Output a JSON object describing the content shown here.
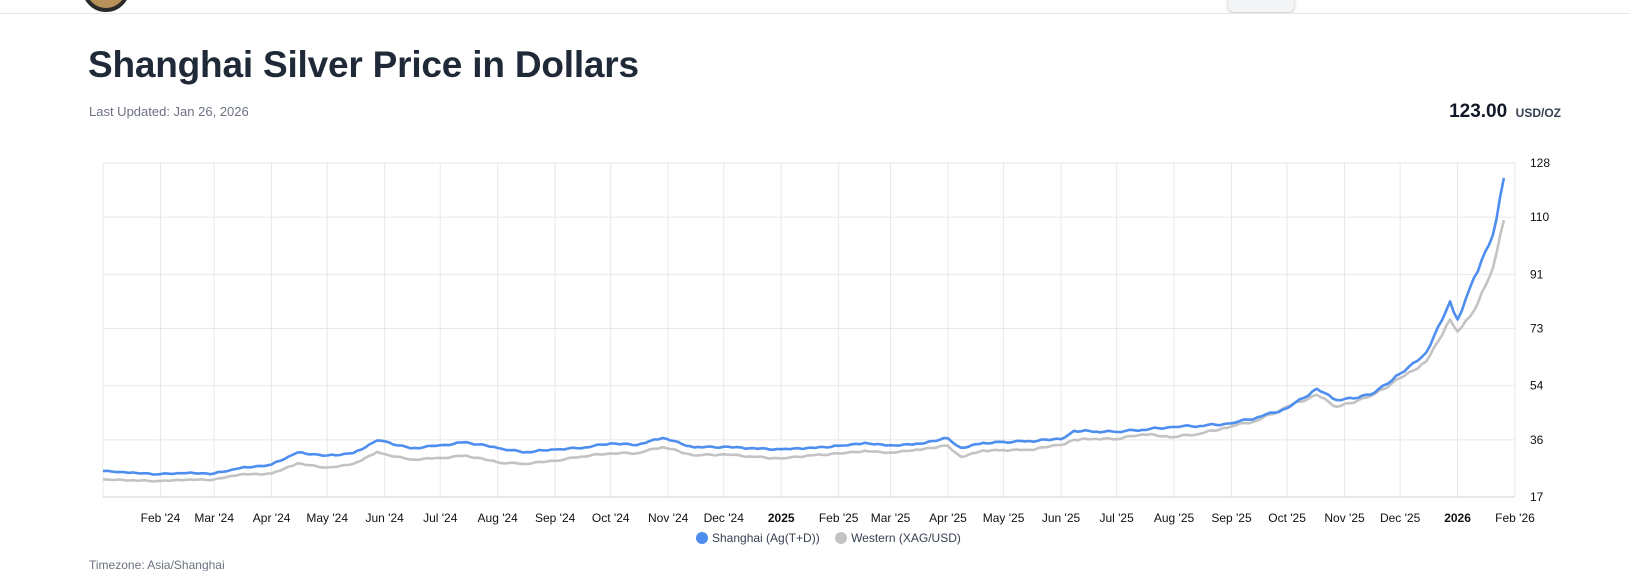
{
  "header": {
    "title": "Shanghai Silver Price in Dollars",
    "last_updated": "Last Updated: Jan 26, 2026",
    "price_value": "123.00",
    "price_unit": "USD/OZ"
  },
  "footer": {
    "timezone": "Timezone: Asia/Shanghai"
  },
  "colors": {
    "shanghai": "#4e8eef",
    "western": "#c3c3c3",
    "grid": "#e8e8e8"
  },
  "chart_data": {
    "type": "line",
    "title": "Shanghai Silver Price in Dollars",
    "xlabel": "",
    "ylabel": "",
    "x_range": [
      "2024-01-01",
      "2026-02-01"
    ],
    "ylim": [
      17,
      128
    ],
    "y_ticks": [
      17,
      36,
      54,
      73,
      91,
      110,
      128
    ],
    "y_axis_side": "right",
    "grid": true,
    "legend_position": "bottom-center",
    "x_ticks": [
      {
        "date": "2024-02-01",
        "label": "Feb '24",
        "bold": false
      },
      {
        "date": "2024-03-01",
        "label": "Mar '24",
        "bold": false
      },
      {
        "date": "2024-04-01",
        "label": "Apr '24",
        "bold": false
      },
      {
        "date": "2024-05-01",
        "label": "May '24",
        "bold": false
      },
      {
        "date": "2024-06-01",
        "label": "Jun '24",
        "bold": false
      },
      {
        "date": "2024-07-01",
        "label": "Jul '24",
        "bold": false
      },
      {
        "date": "2024-08-01",
        "label": "Aug '24",
        "bold": false
      },
      {
        "date": "2024-09-01",
        "label": "Sep '24",
        "bold": false
      },
      {
        "date": "2024-10-01",
        "label": "Oct '24",
        "bold": false
      },
      {
        "date": "2024-11-01",
        "label": "Nov '24",
        "bold": false
      },
      {
        "date": "2024-12-01",
        "label": "Dec '24",
        "bold": false
      },
      {
        "date": "2025-01-01",
        "label": "2025",
        "bold": true
      },
      {
        "date": "2025-02-01",
        "label": "Feb '25",
        "bold": false
      },
      {
        "date": "2025-03-01",
        "label": "Mar '25",
        "bold": false
      },
      {
        "date": "2025-04-01",
        "label": "Apr '25",
        "bold": false
      },
      {
        "date": "2025-05-01",
        "label": "May '25",
        "bold": false
      },
      {
        "date": "2025-06-01",
        "label": "Jun '25",
        "bold": false
      },
      {
        "date": "2025-07-01",
        "label": "Jul '25",
        "bold": false
      },
      {
        "date": "2025-08-01",
        "label": "Aug '25",
        "bold": false
      },
      {
        "date": "2025-09-01",
        "label": "Sep '25",
        "bold": false
      },
      {
        "date": "2025-10-01",
        "label": "Oct '25",
        "bold": false
      },
      {
        "date": "2025-11-01",
        "label": "Nov '25",
        "bold": false
      },
      {
        "date": "2025-12-01",
        "label": "Dec '25",
        "bold": false
      },
      {
        "date": "2026-01-01",
        "label": "2026",
        "bold": true
      },
      {
        "date": "2026-02-01",
        "label": "Feb '26",
        "bold": false
      }
    ],
    "series": [
      {
        "name": "Shanghai (Ag(T+D))",
        "color": "#4e8eef",
        "points": [
          [
            "2024-01-01",
            25.6
          ],
          [
            "2024-01-15",
            25.0
          ],
          [
            "2024-02-01",
            24.6
          ],
          [
            "2024-02-15",
            24.9
          ],
          [
            "2024-03-01",
            24.8
          ],
          [
            "2024-03-15",
            26.6
          ],
          [
            "2024-04-01",
            27.8
          ],
          [
            "2024-04-15",
            31.8
          ],
          [
            "2024-05-01",
            30.8
          ],
          [
            "2024-05-15",
            31.6
          ],
          [
            "2024-05-28",
            35.8
          ],
          [
            "2024-06-01",
            35.5
          ],
          [
            "2024-06-15",
            33.2
          ],
          [
            "2024-07-01",
            34.2
          ],
          [
            "2024-07-15",
            35.2
          ],
          [
            "2024-08-01",
            33.3
          ],
          [
            "2024-08-15",
            31.8
          ],
          [
            "2024-09-01",
            32.8
          ],
          [
            "2024-09-15",
            33.2
          ],
          [
            "2024-10-01",
            34.8
          ],
          [
            "2024-10-15",
            34.2
          ],
          [
            "2024-10-29",
            36.6
          ],
          [
            "2024-11-15",
            33.5
          ],
          [
            "2024-12-01",
            33.7
          ],
          [
            "2024-12-15",
            33.2
          ],
          [
            "2025-01-01",
            32.9
          ],
          [
            "2025-01-15",
            33.3
          ],
          [
            "2025-02-01",
            34.0
          ],
          [
            "2025-02-15",
            35.0
          ],
          [
            "2025-03-01",
            34.2
          ],
          [
            "2025-03-15",
            34.7
          ],
          [
            "2025-04-01",
            36.5
          ],
          [
            "2025-04-08",
            33.4
          ],
          [
            "2025-04-20",
            35.0
          ],
          [
            "2025-05-01",
            35.3
          ],
          [
            "2025-05-15",
            35.6
          ],
          [
            "2025-06-01",
            36.2
          ],
          [
            "2025-06-08",
            39.0
          ],
          [
            "2025-06-20",
            38.7
          ],
          [
            "2025-07-01",
            38.6
          ],
          [
            "2025-07-15",
            39.3
          ],
          [
            "2025-08-01",
            40.3
          ],
          [
            "2025-08-15",
            40.6
          ],
          [
            "2025-09-01",
            41.5
          ],
          [
            "2025-09-15",
            43.5
          ],
          [
            "2025-10-01",
            46.5
          ],
          [
            "2025-10-17",
            53.0
          ],
          [
            "2025-10-28",
            49.2
          ],
          [
            "2025-11-15",
            51.0
          ],
          [
            "2025-12-01",
            58.0
          ],
          [
            "2025-12-15",
            65.0
          ],
          [
            "2025-12-28",
            82.0
          ],
          [
            "2026-01-01",
            76.0
          ],
          [
            "2026-01-10",
            90.0
          ],
          [
            "2026-01-20",
            104.0
          ],
          [
            "2026-01-26",
            123.0
          ]
        ]
      },
      {
        "name": "Western (XAG/USD)",
        "color": "#c3c3c3",
        "points": [
          [
            "2024-01-01",
            22.8
          ],
          [
            "2024-01-15",
            22.5
          ],
          [
            "2024-02-01",
            22.3
          ],
          [
            "2024-02-15",
            22.7
          ],
          [
            "2024-03-01",
            22.8
          ],
          [
            "2024-03-15",
            24.5
          ],
          [
            "2024-04-01",
            24.8
          ],
          [
            "2024-04-15",
            28.2
          ],
          [
            "2024-05-01",
            26.8
          ],
          [
            "2024-05-15",
            28.0
          ],
          [
            "2024-05-28",
            32.0
          ],
          [
            "2024-06-01",
            31.3
          ],
          [
            "2024-06-15",
            29.5
          ],
          [
            "2024-07-01",
            30.0
          ],
          [
            "2024-07-15",
            30.8
          ],
          [
            "2024-08-01",
            28.5
          ],
          [
            "2024-08-15",
            28.0
          ],
          [
            "2024-09-01",
            29.0
          ],
          [
            "2024-09-15",
            30.4
          ],
          [
            "2024-10-01",
            31.5
          ],
          [
            "2024-10-15",
            31.5
          ],
          [
            "2024-10-29",
            33.6
          ],
          [
            "2024-11-15",
            30.8
          ],
          [
            "2024-12-01",
            31.2
          ],
          [
            "2024-12-15",
            30.5
          ],
          [
            "2025-01-01",
            29.8
          ],
          [
            "2025-01-15",
            30.8
          ],
          [
            "2025-02-01",
            31.5
          ],
          [
            "2025-02-15",
            32.4
          ],
          [
            "2025-03-01",
            31.8
          ],
          [
            "2025-03-15",
            32.8
          ],
          [
            "2025-04-01",
            34.0
          ],
          [
            "2025-04-08",
            30.4
          ],
          [
            "2025-04-20",
            32.5
          ],
          [
            "2025-05-01",
            32.6
          ],
          [
            "2025-05-15",
            32.7
          ],
          [
            "2025-06-01",
            34.3
          ],
          [
            "2025-06-08",
            36.0
          ],
          [
            "2025-06-20",
            36.3
          ],
          [
            "2025-07-01",
            36.2
          ],
          [
            "2025-07-15",
            37.8
          ],
          [
            "2025-08-01",
            36.9
          ],
          [
            "2025-08-15",
            38.0
          ],
          [
            "2025-09-01",
            40.5
          ],
          [
            "2025-09-15",
            42.4
          ],
          [
            "2025-10-01",
            47.0
          ],
          [
            "2025-10-17",
            51.0
          ],
          [
            "2025-10-28",
            47.0
          ],
          [
            "2025-11-15",
            50.5
          ],
          [
            "2025-12-01",
            56.5
          ],
          [
            "2025-12-15",
            62.0
          ],
          [
            "2025-12-28",
            76.0
          ],
          [
            "2026-01-01",
            72.0
          ],
          [
            "2026-01-10",
            79.0
          ],
          [
            "2026-01-20",
            93.0
          ],
          [
            "2026-01-26",
            109.0
          ]
        ]
      }
    ]
  }
}
